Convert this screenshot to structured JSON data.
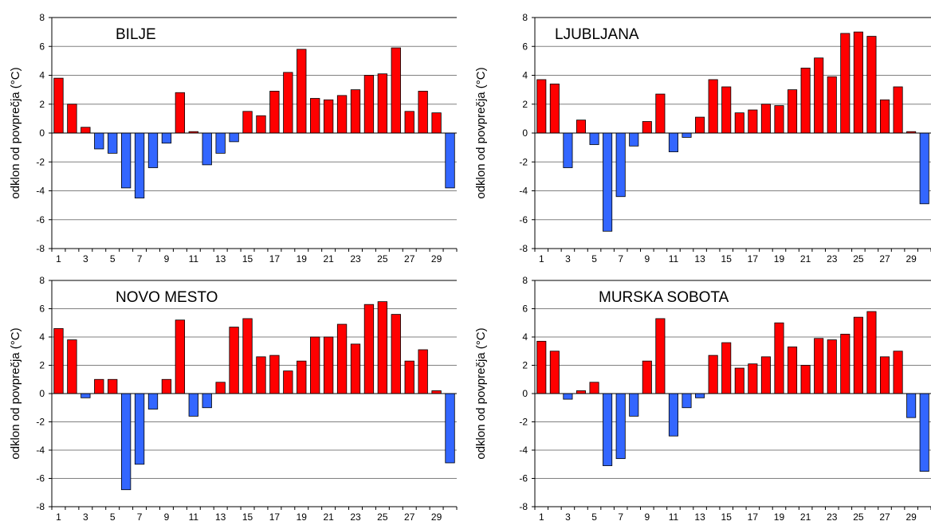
{
  "chart_data": [
    {
      "type": "bar",
      "title": "BILJE",
      "ylabel": "odklon od povprečja (°C)",
      "xlabel": "",
      "ylim": [
        -8,
        8
      ],
      "yticks": [
        -8,
        -6,
        -4,
        -2,
        0,
        2,
        4,
        6,
        8
      ],
      "xticks": [
        1,
        3,
        5,
        7,
        9,
        11,
        13,
        15,
        17,
        19,
        21,
        23,
        25,
        27,
        29
      ],
      "categories": [
        1,
        2,
        3,
        4,
        5,
        6,
        7,
        8,
        9,
        10,
        11,
        12,
        13,
        14,
        15,
        16,
        17,
        18,
        19,
        20,
        21,
        22,
        23,
        24,
        25,
        26,
        27,
        28,
        29,
        30
      ],
      "values": [
        3.8,
        2.0,
        0.4,
        -1.1,
        -1.4,
        -3.8,
        -4.5,
        -2.4,
        -0.7,
        2.8,
        0.1,
        -2.2,
        -1.4,
        -0.6,
        1.5,
        1.2,
        2.9,
        4.2,
        5.8,
        2.4,
        2.3,
        2.6,
        3.0,
        4.0,
        4.1,
        5.9,
        1.5,
        2.9,
        1.4,
        -3.8
      ],
      "colors": {
        "positive": "#ff0000",
        "negative": "#3366ff"
      }
    },
    {
      "type": "bar",
      "title": "LJUBLJANA",
      "ylabel": "odklon od povprečja (°C)",
      "xlabel": "",
      "ylim": [
        -8,
        8
      ],
      "yticks": [
        -8,
        -6,
        -4,
        -2,
        0,
        2,
        4,
        6,
        8
      ],
      "xticks": [
        1,
        3,
        5,
        7,
        9,
        11,
        13,
        15,
        17,
        19,
        21,
        23,
        25,
        27,
        29
      ],
      "categories": [
        1,
        2,
        3,
        4,
        5,
        6,
        7,
        8,
        9,
        10,
        11,
        12,
        13,
        14,
        15,
        16,
        17,
        18,
        19,
        20,
        21,
        22,
        23,
        24,
        25,
        26,
        27,
        28,
        29,
        30
      ],
      "values": [
        3.7,
        3.4,
        -2.4,
        0.9,
        -0.8,
        -6.8,
        -4.4,
        -0.9,
        0.8,
        2.7,
        -1.3,
        -0.3,
        1.1,
        3.7,
        3.2,
        1.4,
        1.6,
        2.0,
        1.9,
        3.0,
        4.5,
        5.2,
        3.9,
        6.9,
        7.0,
        6.7,
        2.3,
        3.2,
        0.1,
        -4.9
      ],
      "colors": {
        "positive": "#ff0000",
        "negative": "#3366ff"
      }
    },
    {
      "type": "bar",
      "title": "NOVO MESTO",
      "ylabel": "odklon od povprečja (°C)",
      "xlabel": "",
      "ylim": [
        -8,
        8
      ],
      "yticks": [
        -8,
        -6,
        -4,
        -2,
        0,
        2,
        4,
        6,
        8
      ],
      "xticks": [
        1,
        3,
        5,
        7,
        9,
        11,
        13,
        15,
        17,
        19,
        21,
        23,
        25,
        27,
        29
      ],
      "categories": [
        1,
        2,
        3,
        4,
        5,
        6,
        7,
        8,
        9,
        10,
        11,
        12,
        13,
        14,
        15,
        16,
        17,
        18,
        19,
        20,
        21,
        22,
        23,
        24,
        25,
        26,
        27,
        28,
        29,
        30
      ],
      "values": [
        4.6,
        3.8,
        -0.3,
        1.0,
        1.0,
        -6.8,
        -5.0,
        -1.1,
        1.0,
        5.2,
        -1.6,
        -1.0,
        0.8,
        4.7,
        5.3,
        2.6,
        2.7,
        1.6,
        2.3,
        4.0,
        4.0,
        4.9,
        3.5,
        6.3,
        6.5,
        5.6,
        2.3,
        3.1,
        0.2,
        -4.9
      ],
      "colors": {
        "positive": "#ff0000",
        "negative": "#3366ff"
      }
    },
    {
      "type": "bar",
      "title": "MURSKA SOBOTA",
      "ylabel": "odklon od povprečja (°C)",
      "xlabel": "",
      "ylim": [
        -8,
        8
      ],
      "yticks": [
        -8,
        -6,
        -4,
        -2,
        0,
        2,
        4,
        6,
        8
      ],
      "xticks": [
        1,
        3,
        5,
        7,
        9,
        11,
        13,
        15,
        17,
        19,
        21,
        23,
        25,
        27,
        29
      ],
      "categories": [
        1,
        2,
        3,
        4,
        5,
        6,
        7,
        8,
        9,
        10,
        11,
        12,
        13,
        14,
        15,
        16,
        17,
        18,
        19,
        20,
        21,
        22,
        23,
        24,
        25,
        26,
        27,
        28,
        29,
        30
      ],
      "values": [
        3.7,
        3.0,
        -0.4,
        0.2,
        0.8,
        -5.1,
        -4.6,
        -1.6,
        2.3,
        5.3,
        -3.0,
        -1.0,
        -0.3,
        2.7,
        3.6,
        1.8,
        2.1,
        2.6,
        5.0,
        3.3,
        2.0,
        3.9,
        3.8,
        4.2,
        5.4,
        5.8,
        2.6,
        3.0,
        -1.7,
        -5.5
      ],
      "colors": {
        "positive": "#ff0000",
        "negative": "#3366ff"
      }
    }
  ]
}
